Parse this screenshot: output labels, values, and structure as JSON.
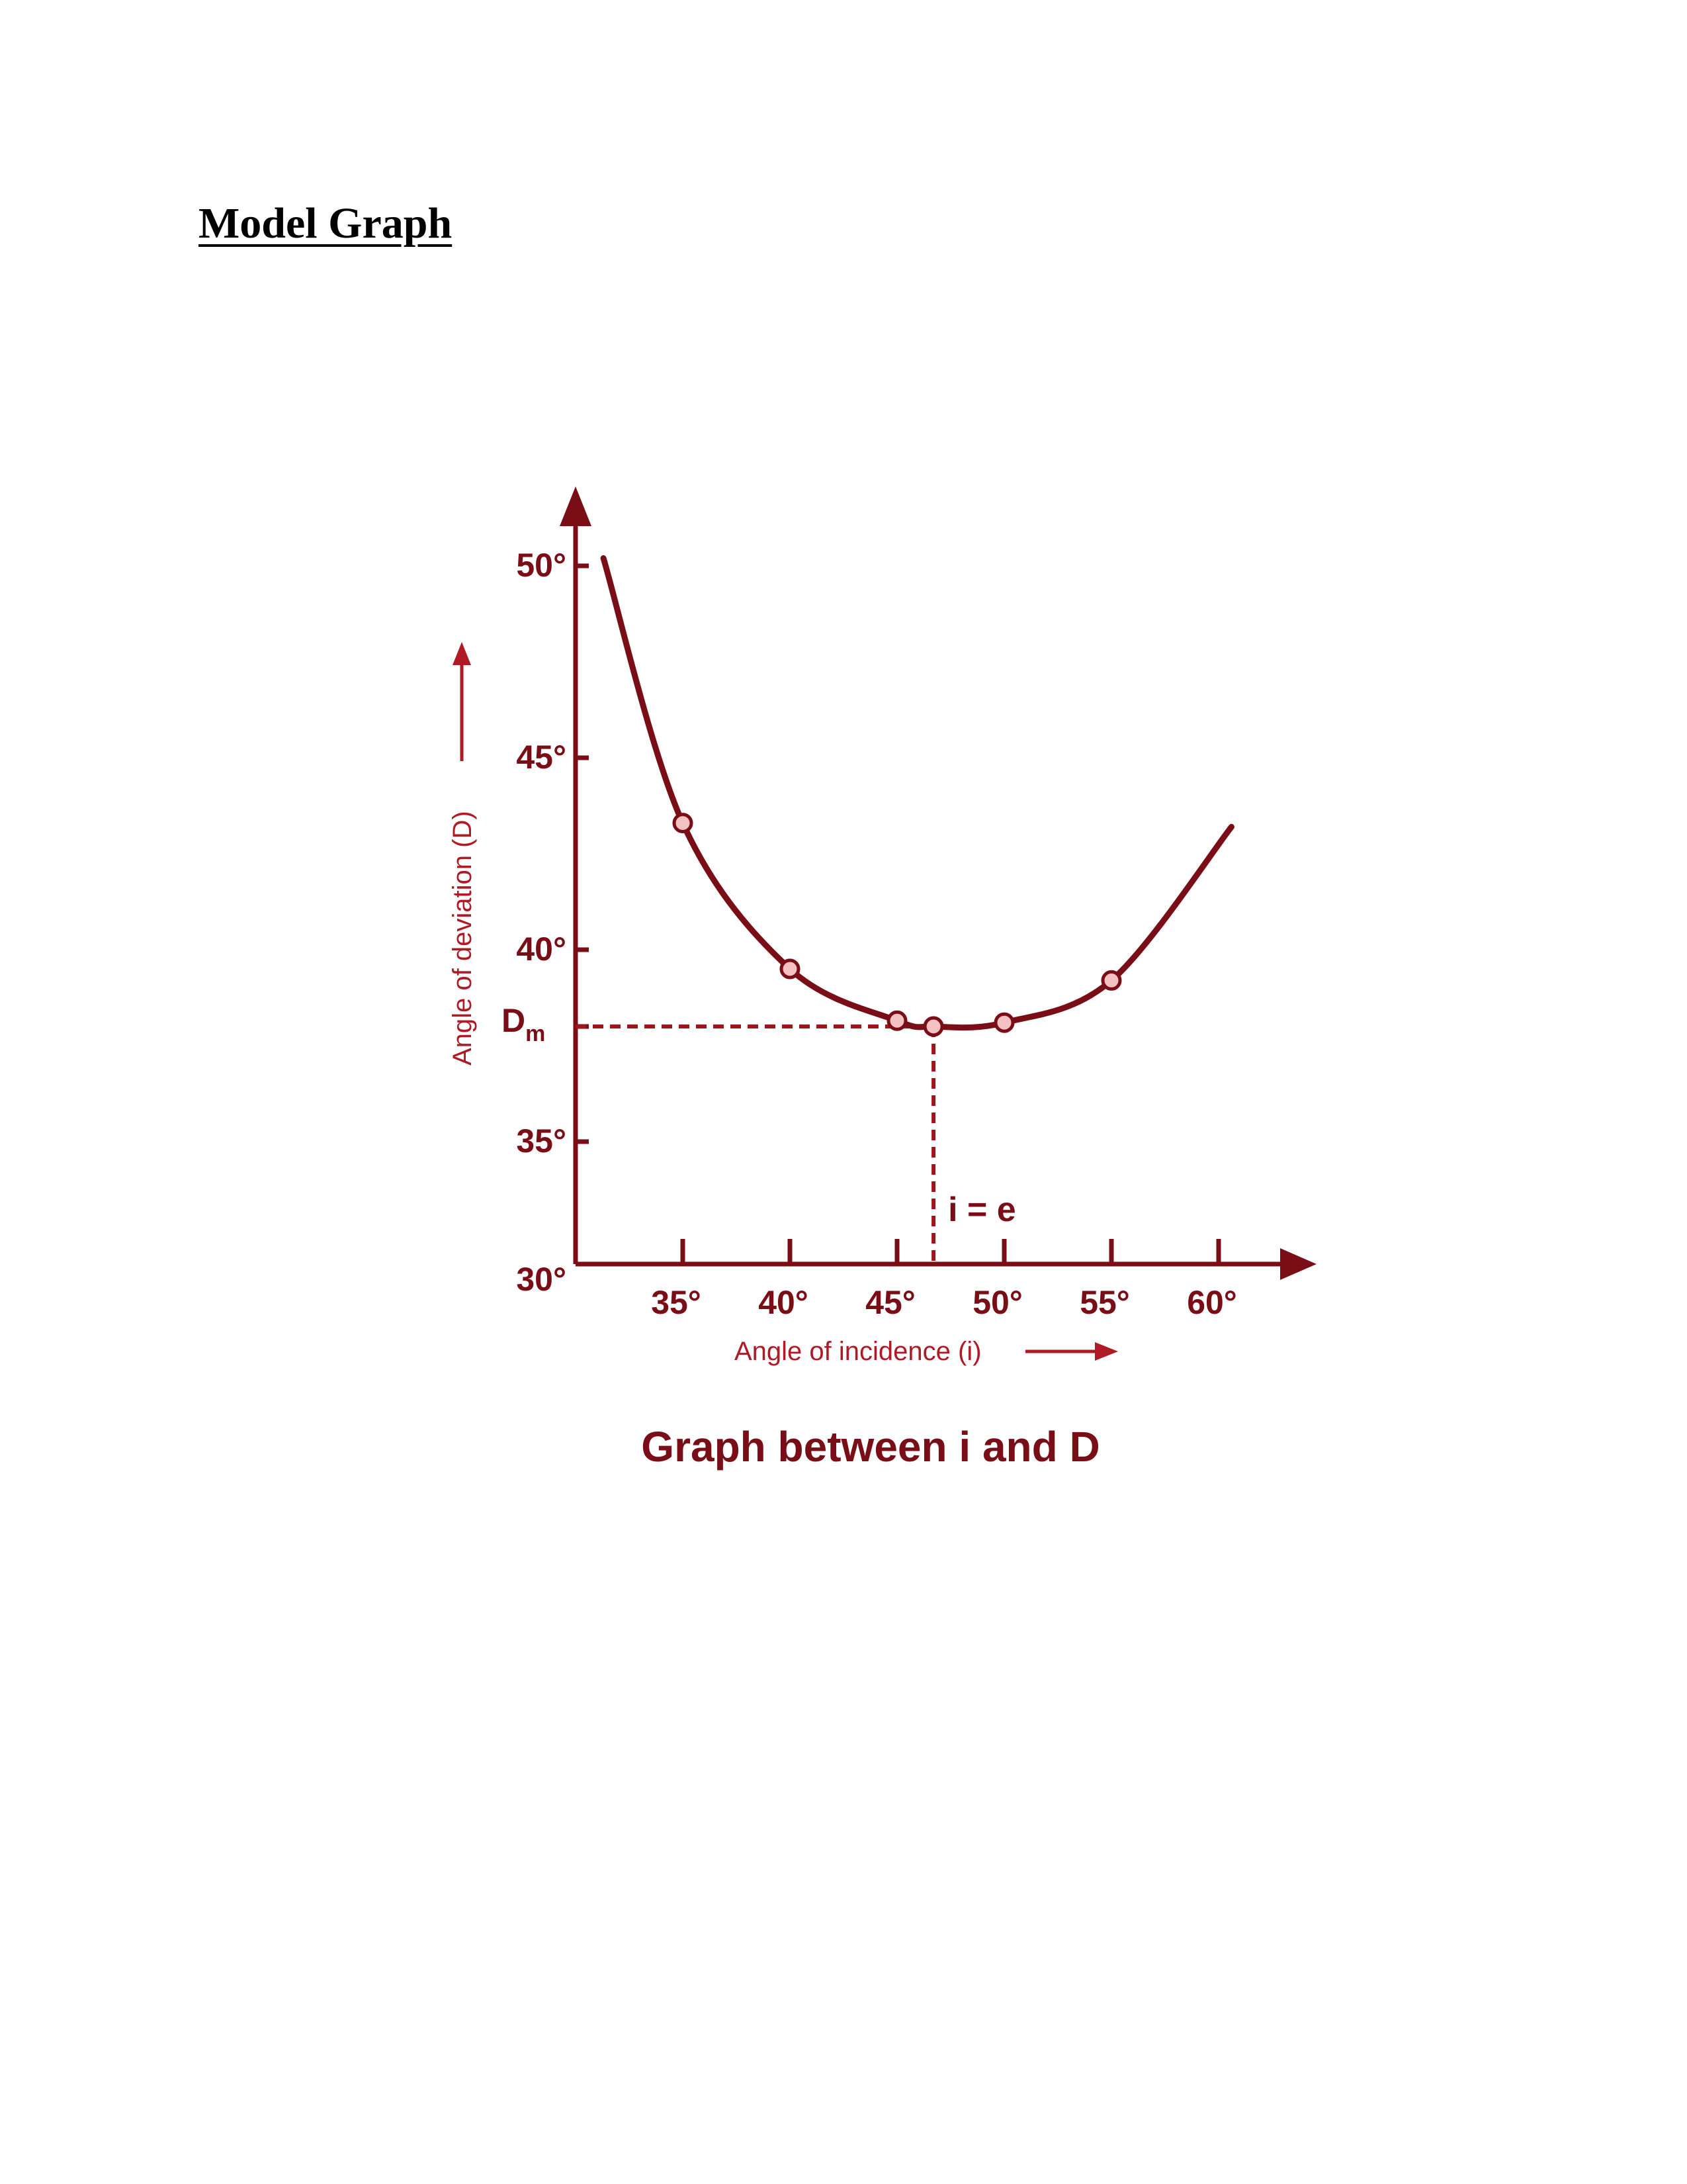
{
  "document": {
    "heading": "Model Graph"
  },
  "chart_data": {
    "type": "line",
    "caption": "Graph between i and D",
    "xlabel": "Angle of incidence (i)",
    "ylabel": "Angle of deviation (D)",
    "x_ticks": [
      "35°",
      "40°",
      "45°",
      "50°",
      "55°",
      "60°"
    ],
    "y_ticks": [
      "50°",
      "45°",
      "40°",
      "35°"
    ],
    "origin_label": "30°",
    "dm_label": "Dm",
    "dm_label_parts": {
      "main": "D",
      "sub": "m"
    },
    "annotation": "i = e",
    "x_tick_values": [
      35,
      40,
      45,
      50,
      55,
      60
    ],
    "y_tick_values": [
      50,
      45,
      40,
      35
    ],
    "series": [
      {
        "points": [
          {
            "x": 35,
            "y": 43.3
          },
          {
            "x": 40,
            "y": 39.5
          },
          {
            "x": 45,
            "y": 38.15
          },
          {
            "x": 46.7,
            "y": 38.0
          },
          {
            "x": 50,
            "y": 38.1
          },
          {
            "x": 55,
            "y": 39.2
          }
        ]
      }
    ],
    "curve_ends": [
      {
        "x": 31.3,
        "y": 50.2
      },
      {
        "x": 60.6,
        "y": 43.2
      }
    ],
    "minimum": {
      "x": 46.7,
      "y": 38.0
    },
    "colors": {
      "ink": "#7a0e16",
      "point_fill": "#f4c2c2",
      "dashed": "#a0141e"
    }
  }
}
